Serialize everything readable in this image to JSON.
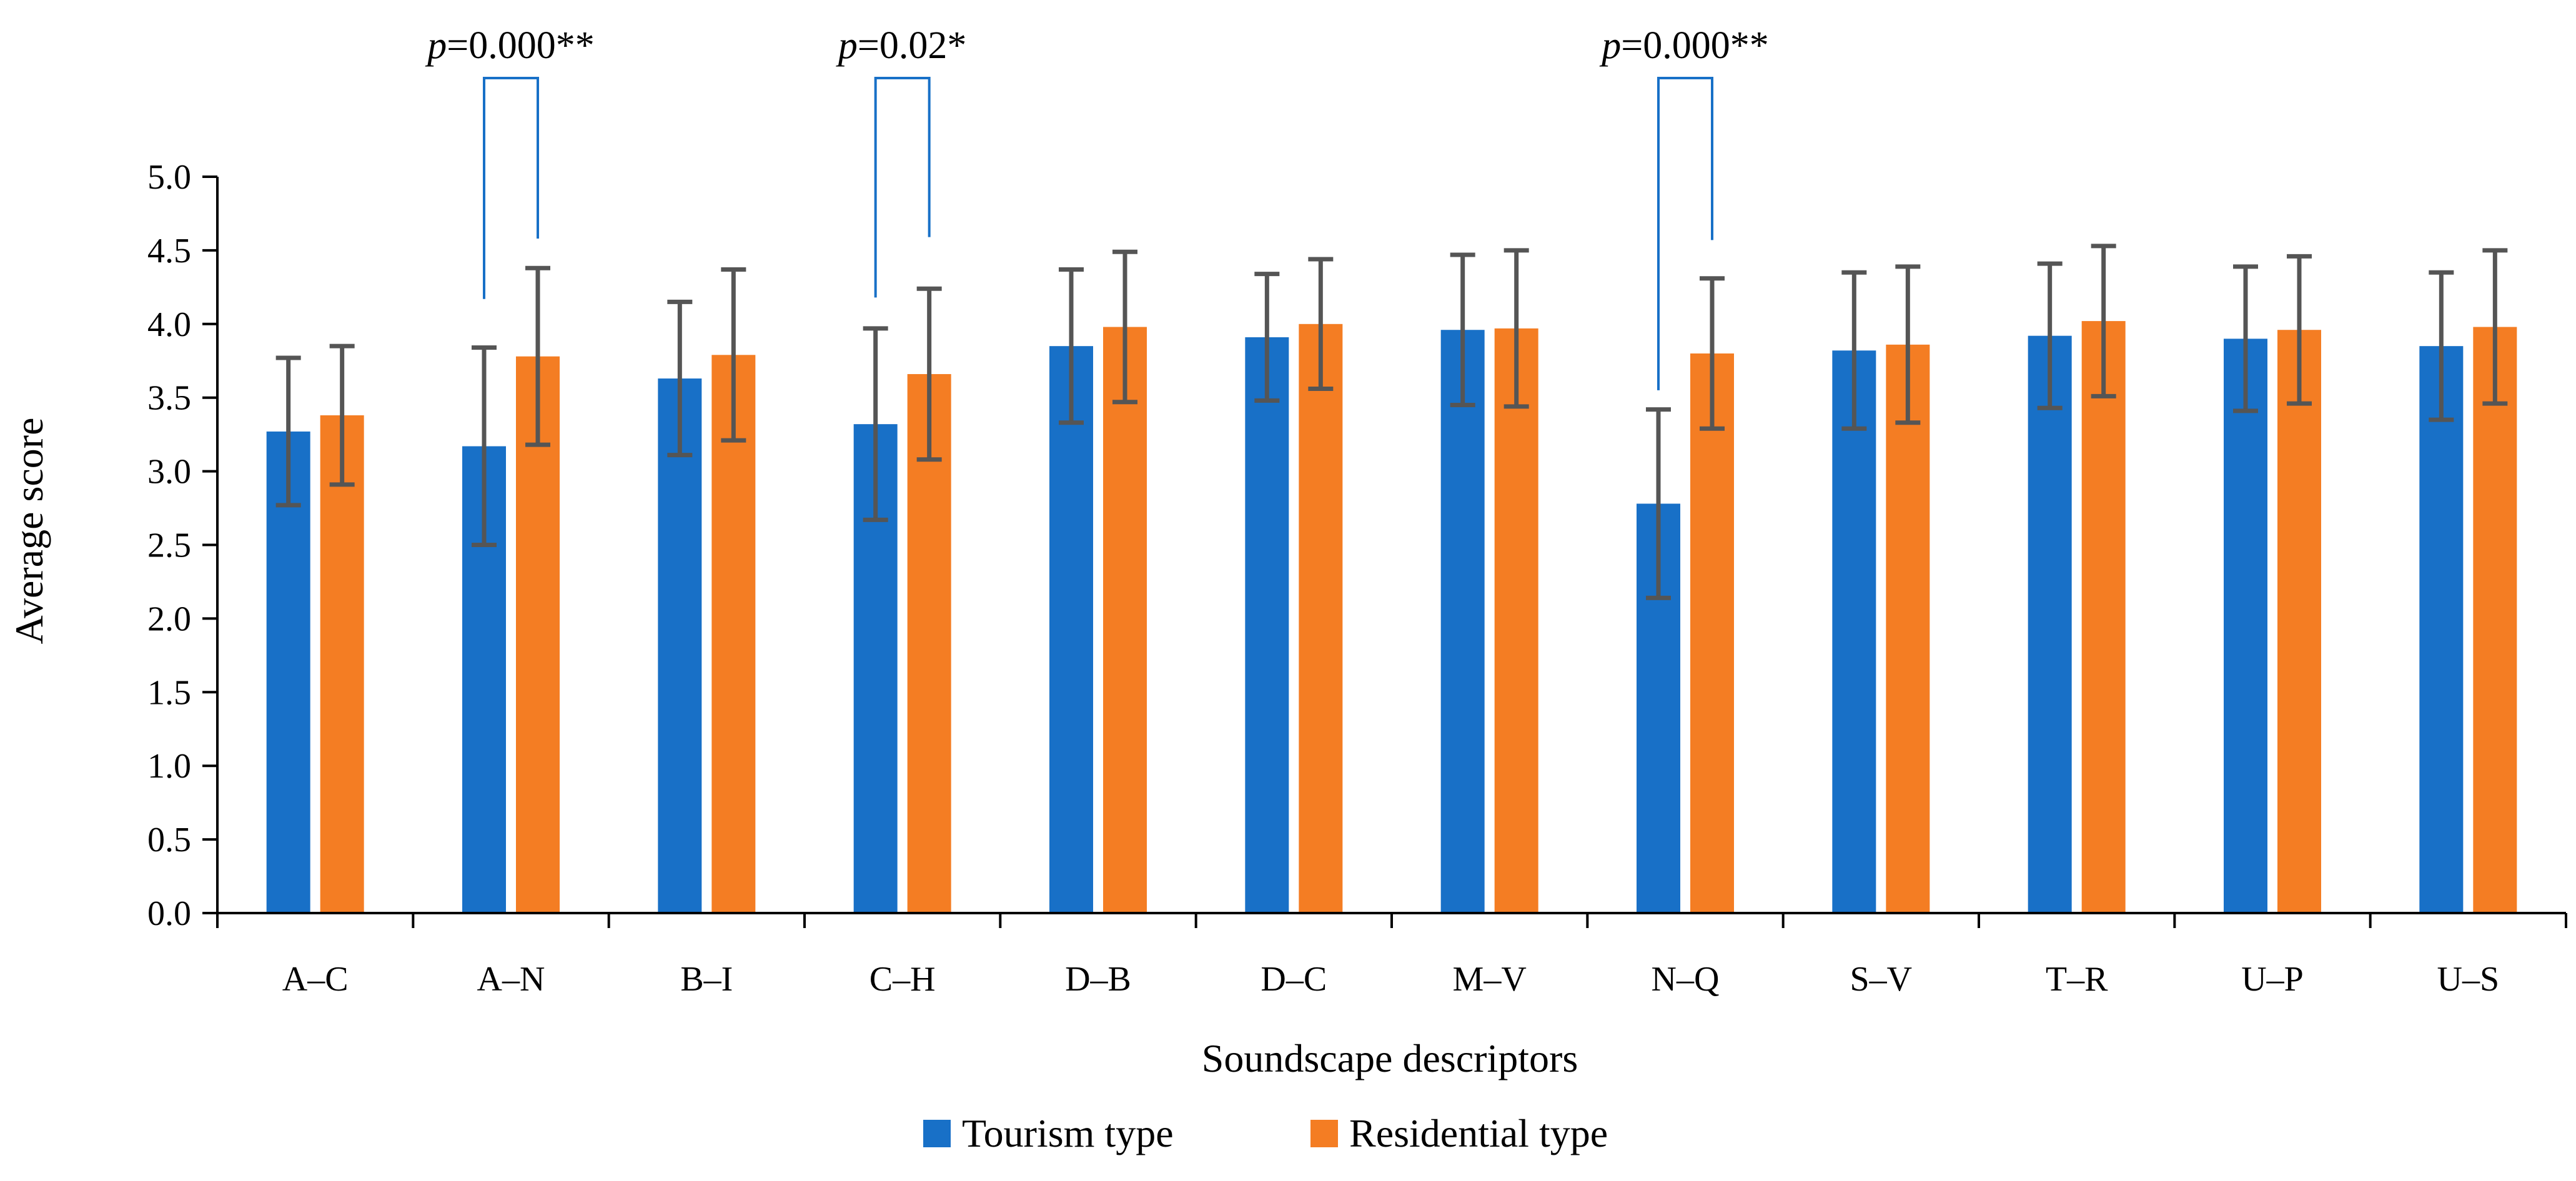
{
  "chart_data": {
    "type": "bar",
    "xlabel": "Soundscape descriptors",
    "ylabel": "Average score",
    "ylim": [
      0,
      5
    ],
    "yticks": [
      "0.0",
      "0.5",
      "1.0",
      "1.5",
      "2.0",
      "2.5",
      "3.0",
      "3.5",
      "4.0",
      "4.5",
      "5.0"
    ],
    "grid": false,
    "legend_position": "bottom",
    "categories": [
      "A–C",
      "A–N",
      "B–I",
      "C–H",
      "D–B",
      "D–C",
      "M–V",
      "N–Q",
      "S–V",
      "T–R",
      "U–P",
      "U–S"
    ],
    "series": [
      {
        "name": "Tourism type",
        "color": "#1870C7",
        "values": [
          3.27,
          3.17,
          3.63,
          3.32,
          3.85,
          3.91,
          3.96,
          2.78,
          3.82,
          3.92,
          3.9,
          3.85
        ],
        "error": [
          0.5,
          0.67,
          0.52,
          0.65,
          0.52,
          0.43,
          0.51,
          0.64,
          0.53,
          0.49,
          0.49,
          0.5
        ]
      },
      {
        "name": "Residential type",
        "color": "#F47D23",
        "values": [
          3.38,
          3.78,
          3.79,
          3.66,
          3.98,
          4.0,
          3.97,
          3.8,
          3.86,
          4.02,
          3.96,
          3.98
        ],
        "error": [
          0.47,
          0.6,
          0.58,
          0.58,
          0.51,
          0.44,
          0.53,
          0.51,
          0.53,
          0.51,
          0.5,
          0.52
        ]
      }
    ],
    "error_bar_color": "#555555",
    "annotations": [
      {
        "category_index": 1,
        "p_italic": "p",
        "p_value": "=0.000**",
        "left_y": 4.17,
        "right_y": 4.58,
        "top_y": 5.67
      },
      {
        "category_index": 3,
        "p_italic": "p",
        "p_value": "=0.02*",
        "left_y": 4.18,
        "right_y": 4.59,
        "top_y": 5.67
      },
      {
        "category_index": 7,
        "p_italic": "p",
        "p_value": "=0.000**",
        "left_y": 3.55,
        "right_y": 4.57,
        "top_y": 5.67
      }
    ],
    "annotation_color": "#1870C7"
  }
}
